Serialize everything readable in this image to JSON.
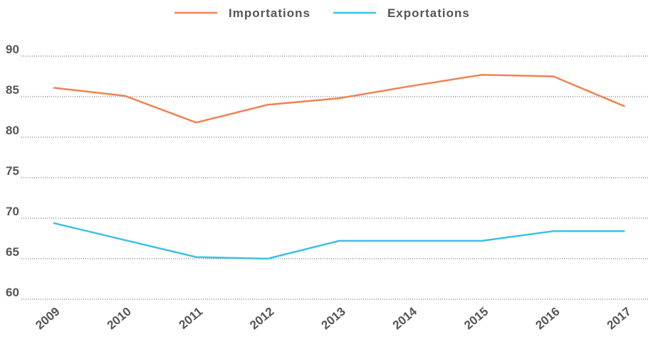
{
  "chart_data": {
    "type": "line",
    "categories": [
      "2009",
      "2010",
      "2011",
      "2012",
      "2013",
      "2014",
      "2015",
      "2016",
      "2017"
    ],
    "series": [
      {
        "name": "Importations",
        "color": "#ef8354",
        "values": [
          86.1,
          85.1,
          81.8,
          84.0,
          84.8,
          86.3,
          87.7,
          87.5,
          83.8
        ]
      },
      {
        "name": "Exportations",
        "color": "#3cc0e6",
        "values": [
          69.4,
          67.3,
          65.2,
          65.0,
          67.2,
          67.2,
          67.2,
          68.4,
          68.4
        ]
      }
    ],
    "ylim": [
      60,
      90
    ],
    "yticks": [
      60,
      65,
      70,
      75,
      80,
      85,
      90
    ],
    "grid": true,
    "legend": "top"
  }
}
